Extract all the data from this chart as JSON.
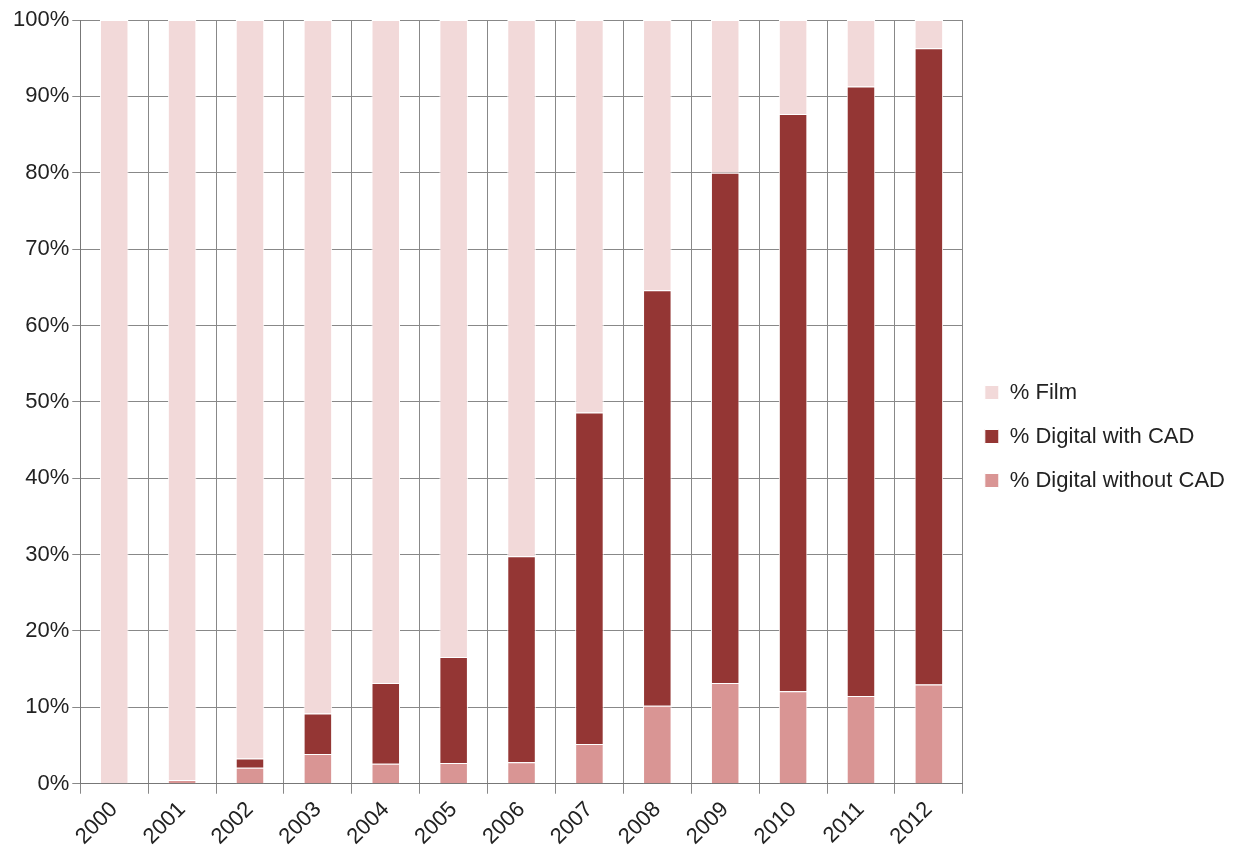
{
  "chart_data": {
    "type": "bar",
    "stacked": true,
    "categories": [
      "2000",
      "2001",
      "2002",
      "2003",
      "2004",
      "2005",
      "2006",
      "2007",
      "2008",
      "2009",
      "2010",
      "2011",
      "2012"
    ],
    "series": [
      {
        "name": "% Digital without CAD",
        "color": "#d99594",
        "values": [
          0,
          0.5,
          2.1,
          3.9,
          2.6,
          2.7,
          2.8,
          5.2,
          10.2,
          13.2,
          12.1,
          11.5,
          13.0
        ]
      },
      {
        "name": "% Digital with CAD",
        "color": "#943634",
        "values": [
          0,
          null,
          1.2,
          5.3,
          10.6,
          13.9,
          27.0,
          43.4,
          54.4,
          66.8,
          75.6,
          79.8,
          83.3
        ]
      },
      {
        "name": "% Film",
        "color": "#f2d9d9",
        "values": [
          100,
          99.5,
          96.7,
          90.8,
          86.8,
          83.4,
          70.2,
          51.4,
          35.4,
          20.0,
          12.3,
          8.7,
          3.7
        ]
      }
    ],
    "ylim": [
      0,
      100
    ],
    "yticks": [
      {
        "value": 0,
        "label": "0%"
      },
      {
        "value": 10,
        "label": "10%"
      },
      {
        "value": 20,
        "label": "20%"
      },
      {
        "value": 30,
        "label": "30%"
      },
      {
        "value": 40,
        "label": "40%"
      },
      {
        "value": 50,
        "label": "50%"
      },
      {
        "value": 60,
        "label": "60%"
      },
      {
        "value": 70,
        "label": "70%"
      },
      {
        "value": 80,
        "label": "80%"
      },
      {
        "value": 90,
        "label": "90%"
      },
      {
        "value": 100,
        "label": "100%"
      }
    ],
    "grid": true,
    "legend": "right"
  }
}
